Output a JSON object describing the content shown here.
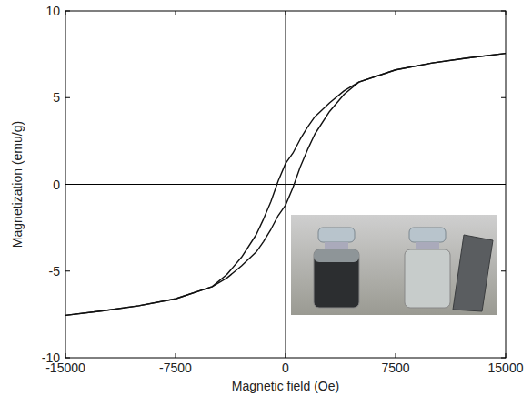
{
  "chart_data": {
    "type": "line",
    "x_label": "Magnetic field (Oe)",
    "y_label": "Magnetization (emu/g)",
    "x": [
      -15000,
      -12500,
      -10000,
      -7500,
      -5000,
      -4000,
      -3000,
      -2000,
      -1500,
      -1000,
      -500,
      0,
      500,
      1000,
      1500,
      2000,
      3000,
      4000,
      5000,
      7500,
      10000,
      12500,
      15000
    ],
    "series": [
      {
        "color": "#111111",
        "values": [
          -7.55,
          -7.3,
          -7.0,
          -6.6,
          -5.9,
          -5.2,
          -4.2,
          -2.9,
          -2.0,
          -1.0,
          0.2,
          1.2,
          1.8,
          2.6,
          3.3,
          3.9,
          4.7,
          5.4,
          5.9,
          6.6,
          7.0,
          7.3,
          7.55
        ]
      },
      {
        "color": "#111111",
        "values": [
          -7.55,
          -7.3,
          -7.0,
          -6.6,
          -5.9,
          -5.4,
          -4.7,
          -3.9,
          -3.3,
          -2.6,
          -1.8,
          -1.2,
          -0.2,
          1.0,
          2.0,
          2.9,
          4.2,
          5.2,
          5.9,
          6.6,
          7.0,
          7.3,
          7.55
        ]
      }
    ],
    "xlim": [
      -15000,
      15000
    ],
    "ylim": [
      -10,
      10
    ],
    "xticks": [
      -15000,
      -7500,
      0,
      7500,
      15000
    ],
    "yticks": [
      -10,
      -5,
      0,
      5,
      10
    ],
    "grid": false
  }
}
